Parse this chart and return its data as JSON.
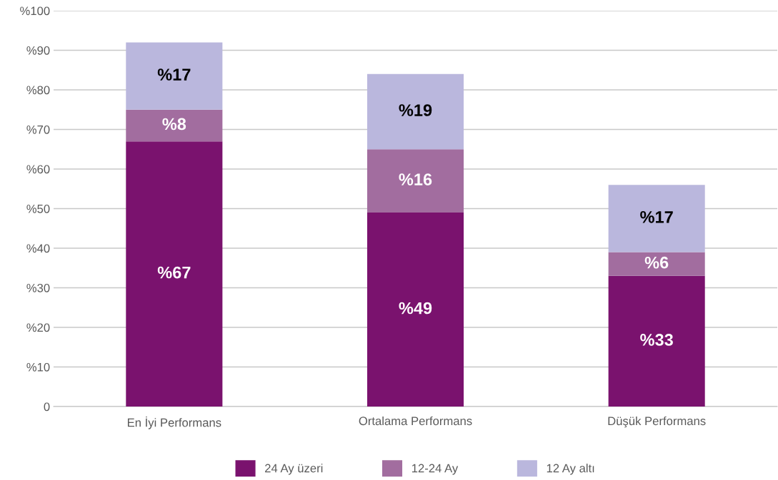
{
  "chart_data": {
    "type": "bar",
    "stacked": true,
    "categories": [
      "En İyi Performans",
      "Ortalama Performans",
      "Düşük Performans"
    ],
    "series": [
      {
        "name": "24 Ay üzeri",
        "color": "#7a126e",
        "values": [
          67,
          49,
          33
        ],
        "value_labels": [
          "%67",
          "%49",
          "%33"
        ]
      },
      {
        "name": "12-24 Ay",
        "color": "#a26d9f",
        "values": [
          8,
          16,
          6
        ],
        "value_labels": [
          "%8",
          "%16",
          "%6"
        ]
      },
      {
        "name": "12 Ay altı",
        "color": "#bab7dd",
        "values": [
          17,
          19,
          17
        ],
        "value_labels": [
          "%17",
          "%19",
          "%17"
        ]
      }
    ],
    "ylim": [
      0,
      100
    ],
    "yticks": [
      0,
      {
        "value": 10,
        "label": "%10"
      },
      {
        "value": 20,
        "label": "%20"
      },
      {
        "value": 30,
        "label": "%30"
      },
      {
        "value": 40,
        "label": "%40"
      },
      {
        "value": 50,
        "label": "%50"
      },
      {
        "value": 60,
        "label": "%60"
      },
      {
        "value": 70,
        "label": "%70"
      },
      {
        "value": 80,
        "label": "%80"
      },
      {
        "value": 90,
        "label": "%90"
      },
      {
        "value": 100,
        "label": "%100"
      }
    ],
    "grid": "y",
    "legend": "bottom"
  }
}
